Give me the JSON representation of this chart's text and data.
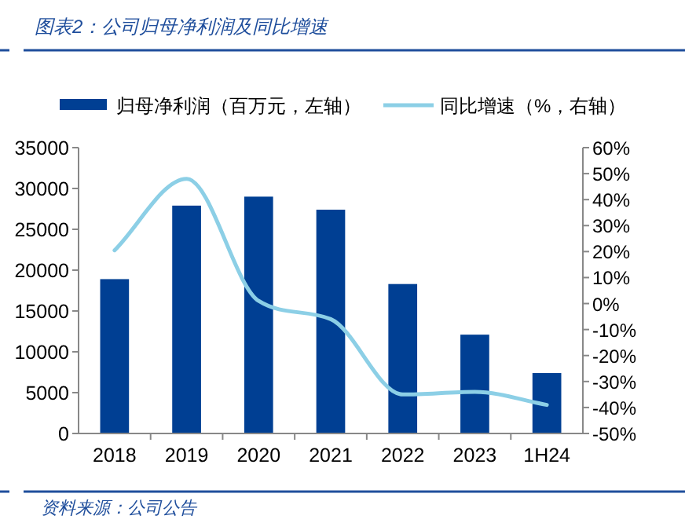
{
  "chart_data": {
    "type": "bar",
    "title": "图表2：公司归母净利润及同比增速",
    "categories": [
      "2018",
      "2019",
      "2020",
      "2021",
      "2022",
      "2023",
      "1H24"
    ],
    "series": [
      {
        "name": "归母净利润（百万元，左轴）",
        "color": "#003f93",
        "values": [
          18900,
          27900,
          29000,
          27400,
          18300,
          12100,
          7400
        ]
      },
      {
        "name": "同比增速（%，右轴）",
        "type": "line",
        "axis": "y2",
        "color": "#8ccfe6",
        "values": [
          20.5,
          48,
          1,
          -6,
          -35,
          -34,
          -39
        ]
      }
    ],
    "ylim": [
      0,
      35000
    ],
    "yticks": [
      0,
      5000,
      10000,
      15000,
      20000,
      25000,
      30000,
      35000
    ],
    "y2lim": [
      -50,
      60
    ],
    "y2ticks": [
      {
        "value": -50,
        "label": "-50%"
      },
      {
        "value": -40,
        "label": "-40%"
      },
      {
        "value": -30,
        "label": "-30%"
      },
      {
        "value": -20,
        "label": "-20%"
      },
      {
        "value": -10,
        "label": "-10%"
      },
      {
        "value": 0,
        "label": "0%"
      },
      {
        "value": 10,
        "label": "10%"
      },
      {
        "value": 20,
        "label": "20%"
      },
      {
        "value": 30,
        "label": "30%"
      },
      {
        "value": 40,
        "label": "40%"
      },
      {
        "value": 50,
        "label": "50%"
      },
      {
        "value": 60,
        "label": "60%"
      }
    ],
    "grid": false,
    "legend": "top",
    "marker": "none",
    "annotations": [
      "资料来源：公司公告"
    ]
  }
}
